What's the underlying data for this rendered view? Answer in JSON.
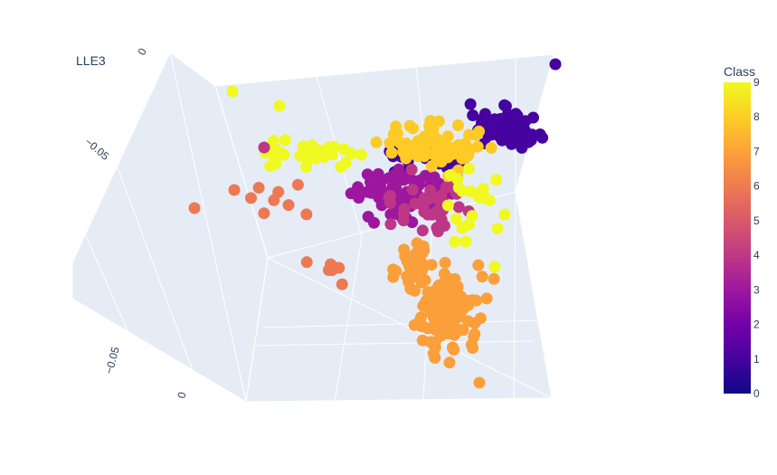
{
  "chart_data": {
    "type": "scatter",
    "title": "",
    "axes": {
      "z_title": "LLE3",
      "visible_tick_labels": [
        "−0.05",
        "−0.05",
        "0",
        "0"
      ]
    },
    "colorbar": {
      "title": "Class",
      "range": [
        0,
        9
      ],
      "ticks": [
        "0",
        "1",
        "2",
        "3",
        "4",
        "5",
        "6",
        "7",
        "8",
        "9"
      ],
      "colorscale": [
        "#0d0887",
        "#46039f",
        "#7201a8",
        "#9c179e",
        "#bd3786",
        "#d8576b",
        "#ed7953",
        "#fb9f3a",
        "#fdca26",
        "#f0f921"
      ]
    },
    "series_by_class": [
      {
        "class": 1,
        "note": "dense cluster upper-right"
      },
      {
        "class": 3,
        "note": "central cluster"
      },
      {
        "class": 4,
        "note": "central cluster, mixed"
      },
      {
        "class": 6,
        "note": "scattered outliers left/center"
      },
      {
        "class": 7,
        "note": "long tail extending down"
      },
      {
        "class": 8,
        "note": "band across upper middle"
      },
      {
        "class": 9,
        "note": "arm extending to the upper-left"
      }
    ],
    "grid": true,
    "legend": "colorbar-right"
  }
}
